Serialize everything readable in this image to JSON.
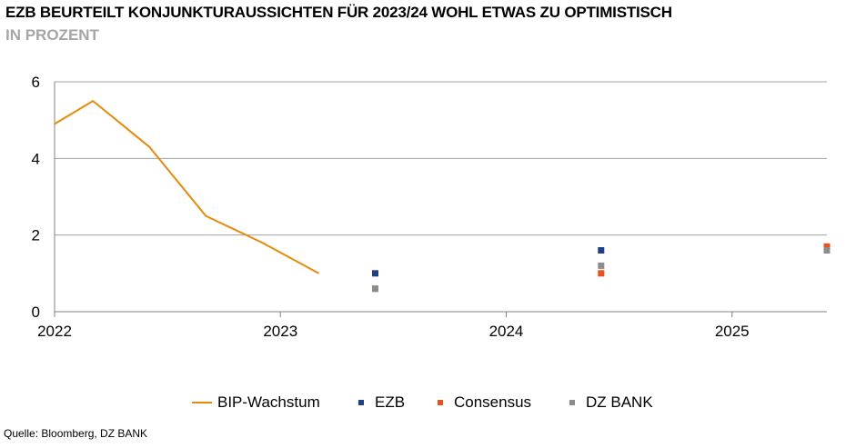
{
  "title": "EZB BEURTEILT KONJUNKTURAUSSICHTEN FÜR 2023/24 WOHL ETWAS ZU OPTIMISTISCH",
  "subtitle": "IN PROZENT",
  "source": "Quelle: Bloomberg, DZ BANK",
  "chart_data": {
    "type": "line",
    "title": "EZB BEURTEILT KONJUNKTURAUSSICHTEN FÜR 2023/24 WOHL ETWAS ZU OPTIMISTISCH",
    "subtitle": "IN PROZENT",
    "xlabel": "",
    "ylabel": "",
    "xlim": [
      2022.0,
      2025.42
    ],
    "ylim": [
      0,
      6
    ],
    "x_ticks": [
      "2022",
      "2023",
      "2024",
      "2025"
    ],
    "y_ticks": [
      "0",
      "2",
      "4",
      "6"
    ],
    "grid": "horizontal",
    "legend_position": "bottom",
    "series": [
      {
        "name": "BIP-Wachstum",
        "type": "line",
        "color": "#e8890c",
        "points": [
          {
            "x": 2022.0,
            "y": 4.9
          },
          {
            "x": 2022.17,
            "y": 5.5
          },
          {
            "x": 2022.42,
            "y": 4.3
          },
          {
            "x": 2022.67,
            "y": 2.5
          },
          {
            "x": 2022.92,
            "y": 1.8
          },
          {
            "x": 2023.17,
            "y": 1.0
          }
        ]
      },
      {
        "name": "EZB",
        "type": "scatter",
        "color": "#1f3f87",
        "points": [
          {
            "x": 2023.42,
            "y": 1.0
          },
          {
            "x": 2024.42,
            "y": 1.6
          },
          {
            "x": 2025.42,
            "y": 1.6
          }
        ]
      },
      {
        "name": "Consensus",
        "type": "scatter",
        "color": "#e8521c",
        "points": [
          {
            "x": 2023.42,
            "y": 0.6
          },
          {
            "x": 2024.42,
            "y": 1.0
          },
          {
            "x": 2025.42,
            "y": 1.7
          }
        ]
      },
      {
        "name": "DZ BANK",
        "type": "scatter",
        "color": "#8c8c8c",
        "points": [
          {
            "x": 2023.42,
            "y": 0.6
          },
          {
            "x": 2024.42,
            "y": 1.2
          },
          {
            "x": 2025.42,
            "y": 1.6
          }
        ]
      }
    ]
  }
}
